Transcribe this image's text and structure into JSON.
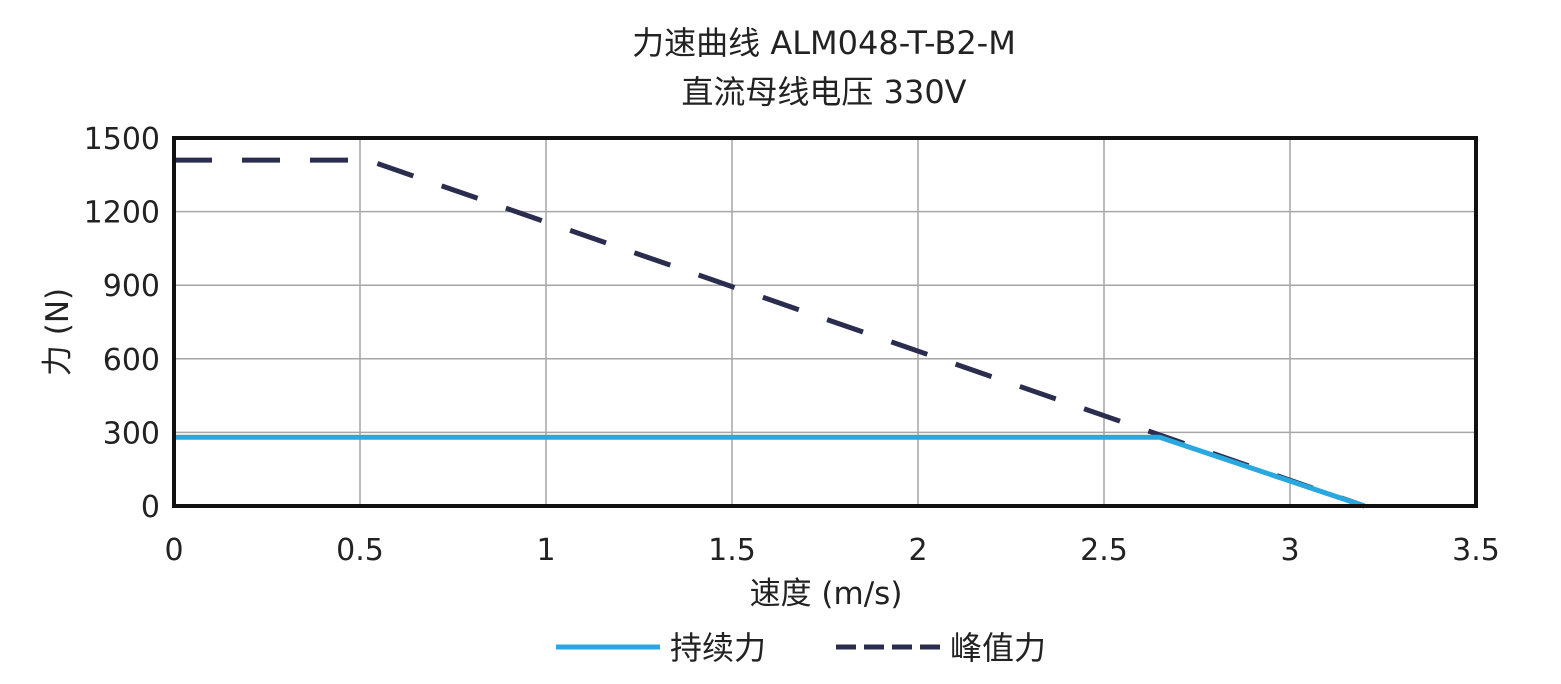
{
  "chart_data": {
    "type": "line",
    "title": "力速曲线 ALM048-T-B2-M",
    "subtitle": "直流母线电压 330V",
    "xlabel": "速度 (m/s)",
    "ylabel": "力 (N)",
    "xlim": [
      0,
      3.5
    ],
    "ylim": [
      0,
      1500
    ],
    "x_ticks": [
      "0",
      "0.5",
      "1",
      "1.5",
      "2",
      "2.5",
      "3",
      "3.5"
    ],
    "y_ticks": [
      "0",
      "300",
      "600",
      "900",
      "1200",
      "1500"
    ],
    "grid": true,
    "legend_position": "bottom",
    "series": [
      {
        "name": "持续力",
        "color": "#29a8df",
        "dash": "solid",
        "points": [
          [
            0,
            280
          ],
          [
            2.65,
            280
          ],
          [
            3.2,
            0
          ]
        ]
      },
      {
        "name": "峰值力",
        "color": "#2a2d4e",
        "dash": "dashed",
        "points": [
          [
            0,
            1410
          ],
          [
            0.52,
            1410
          ],
          [
            3.2,
            0
          ]
        ]
      }
    ]
  }
}
